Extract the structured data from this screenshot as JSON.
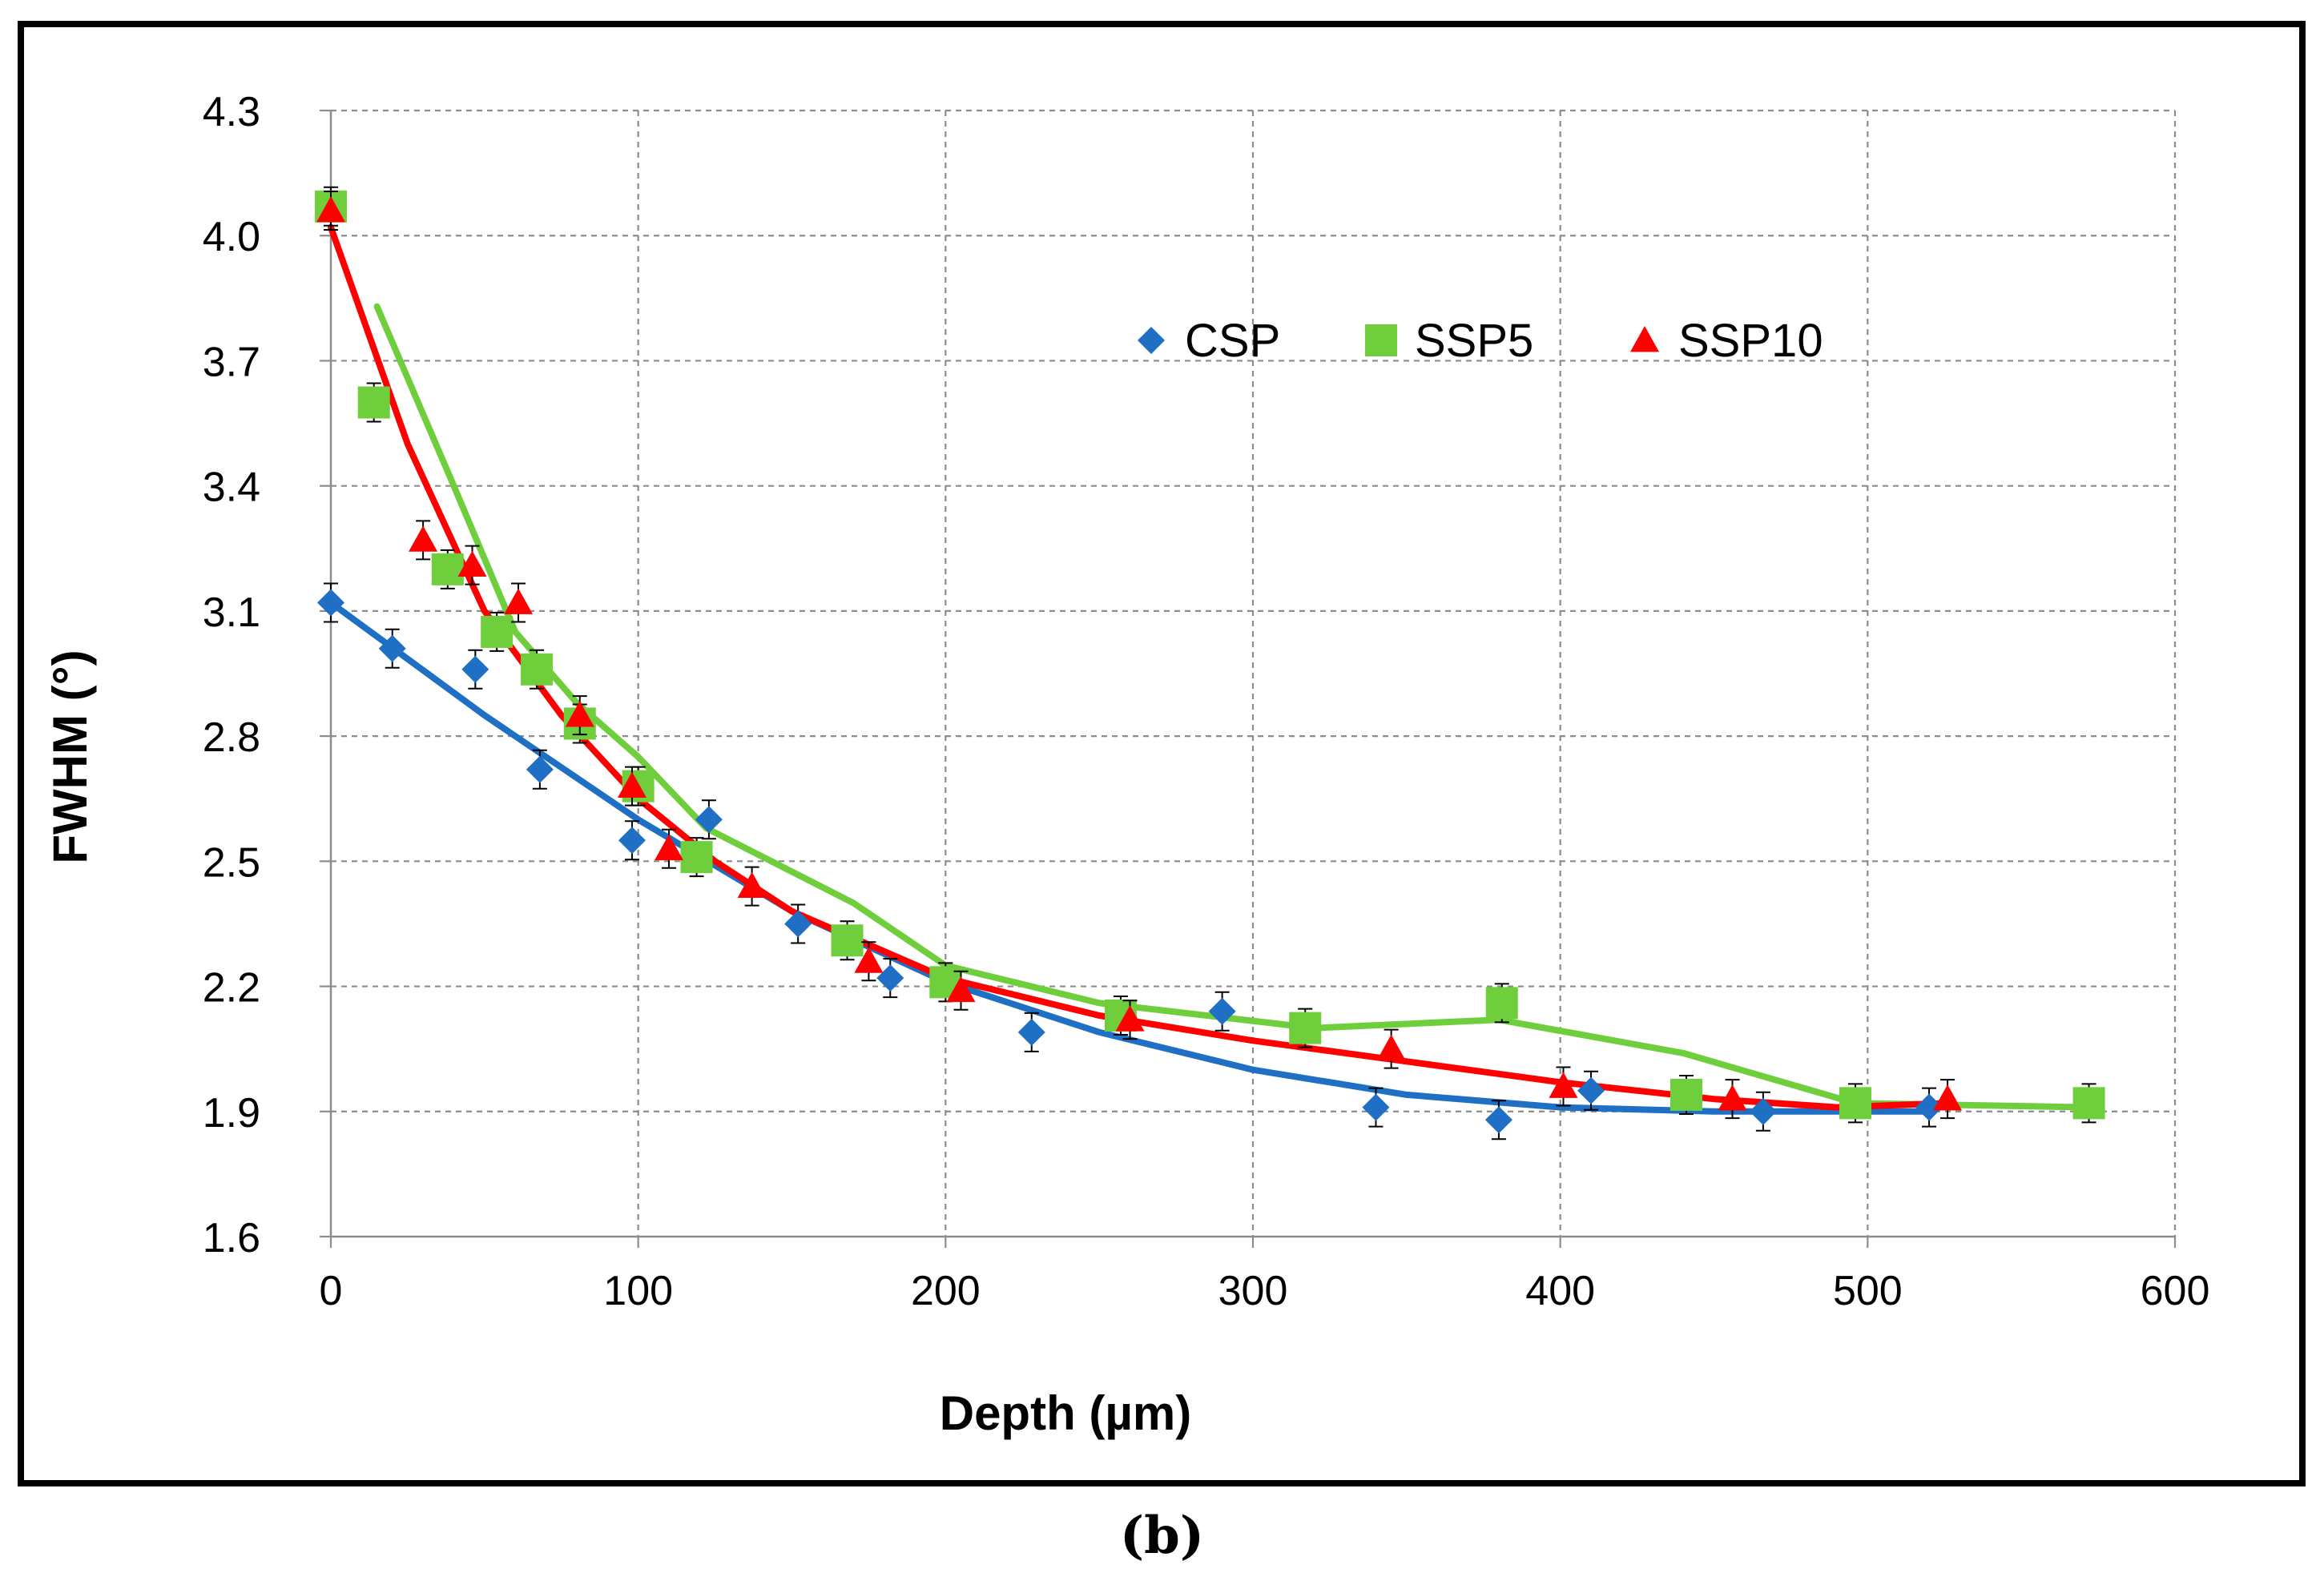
{
  "caption": "(b)",
  "chart_data": {
    "type": "scatter",
    "xlabel": "Depth (µm)",
    "ylabel": "FWHM (°)",
    "xlim": [
      0,
      600
    ],
    "ylim": [
      1.6,
      4.3
    ],
    "x_ticks": [
      "0",
      "100",
      "200",
      "300",
      "400",
      "500",
      "600"
    ],
    "y_ticks": [
      "1.6",
      "1.9",
      "2.2",
      "2.5",
      "2.8",
      "3.1",
      "3.4",
      "3.7",
      "4.0",
      "4.3"
    ],
    "grid": "dashed",
    "legend_position": "top-center",
    "series": [
      {
        "name": "CSP",
        "color": "#1f6fc5",
        "marker": "diamond",
        "points": [
          [
            0,
            3.12
          ],
          [
            20,
            3.01
          ],
          [
            47,
            2.96
          ],
          [
            68,
            2.72
          ],
          [
            98,
            2.55
          ],
          [
            123,
            2.6
          ],
          [
            152,
            2.35
          ],
          [
            182,
            2.22
          ],
          [
            228,
            2.09
          ],
          [
            290,
            2.14
          ],
          [
            340,
            1.91
          ],
          [
            380,
            1.88
          ],
          [
            410,
            1.95
          ],
          [
            466,
            1.9
          ],
          [
            520,
            1.91
          ]
        ],
        "trend": [
          [
            0,
            3.12
          ],
          [
            50,
            2.85
          ],
          [
            100,
            2.6
          ],
          [
            150,
            2.38
          ],
          [
            200,
            2.21
          ],
          [
            250,
            2.09
          ],
          [
            300,
            2.0
          ],
          [
            350,
            1.94
          ],
          [
            400,
            1.91
          ],
          [
            450,
            1.9
          ],
          [
            520,
            1.9
          ]
        ]
      },
      {
        "name": "SSP5",
        "color": "#6fce3c",
        "marker": "square",
        "points": [
          [
            0,
            4.07
          ],
          [
            14,
            3.6
          ],
          [
            38,
            3.2
          ],
          [
            54,
            3.05
          ],
          [
            67,
            2.96
          ],
          [
            81,
            2.83
          ],
          [
            100,
            2.68
          ],
          [
            119,
            2.51
          ],
          [
            168,
            2.31
          ],
          [
            200,
            2.21
          ],
          [
            257,
            2.13
          ],
          [
            317,
            2.1
          ],
          [
            381,
            2.16
          ],
          [
            441,
            1.94
          ],
          [
            496,
            1.92
          ],
          [
            572,
            1.92
          ]
        ],
        "trend": [
          [
            15,
            3.83
          ],
          [
            40,
            3.4
          ],
          [
            60,
            3.05
          ],
          [
            80,
            2.88
          ],
          [
            100,
            2.75
          ],
          [
            122,
            2.58
          ],
          [
            170,
            2.4
          ],
          [
            200,
            2.25
          ],
          [
            250,
            2.16
          ],
          [
            320,
            2.1
          ],
          [
            380,
            2.12
          ],
          [
            440,
            2.04
          ],
          [
            496,
            1.92
          ],
          [
            572,
            1.91
          ]
        ]
      },
      {
        "name": "SSP10",
        "color": "#ff0000",
        "marker": "triangle",
        "points": [
          [
            0,
            4.06
          ],
          [
            30,
            3.27
          ],
          [
            46,
            3.21
          ],
          [
            61,
            3.12
          ],
          [
            81,
            2.85
          ],
          [
            98,
            2.68
          ],
          [
            110,
            2.53
          ],
          [
            137,
            2.44
          ],
          [
            175,
            2.26
          ],
          [
            205,
            2.19
          ],
          [
            260,
            2.12
          ],
          [
            345,
            2.05
          ],
          [
            401,
            1.96
          ],
          [
            456,
            1.93
          ],
          [
            526,
            1.93
          ]
        ],
        "trend": [
          [
            0,
            4.02
          ],
          [
            25,
            3.5
          ],
          [
            50,
            3.1
          ],
          [
            75,
            2.85
          ],
          [
            100,
            2.65
          ],
          [
            125,
            2.5
          ],
          [
            150,
            2.38
          ],
          [
            200,
            2.22
          ],
          [
            250,
            2.13
          ],
          [
            300,
            2.07
          ],
          [
            350,
            2.02
          ],
          [
            400,
            1.97
          ],
          [
            450,
            1.93
          ],
          [
            490,
            1.91
          ],
          [
            526,
            1.92
          ]
        ]
      }
    ]
  }
}
